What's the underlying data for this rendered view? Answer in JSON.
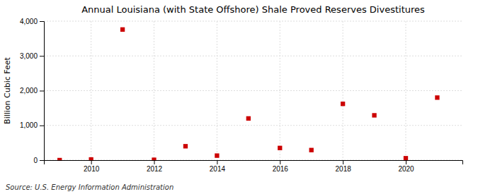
{
  "chart_data": {
    "type": "scatter",
    "title": "Annual Louisiana (with State Offshore) Shale Proved Reserves Divestitures",
    "ylabel": "Billion Cubic Feet",
    "source": "Source: U.S. Energy Information Administration",
    "x": [
      2009,
      2010,
      2011,
      2012,
      2013,
      2014,
      2015,
      2016,
      2017,
      2018,
      2019,
      2020,
      2021
    ],
    "values": [
      1,
      20,
      3760,
      10,
      400,
      130,
      1200,
      350,
      290,
      1620,
      1290,
      55,
      1800
    ],
    "color": "#cc0000",
    "marker": "square",
    "xlim": [
      2008.5,
      2021.8
    ],
    "ylim": [
      0,
      4000
    ],
    "xticks": [
      2010,
      2012,
      2014,
      2016,
      2018,
      2020
    ],
    "yticks": [
      0,
      {
        "value": 1000,
        "label": "1,000"
      },
      {
        "value": 2000,
        "label": "2,000"
      },
      {
        "value": 3000,
        "label": "3,000"
      },
      {
        "value": 4000,
        "label": "4,000"
      }
    ],
    "grid": true
  }
}
